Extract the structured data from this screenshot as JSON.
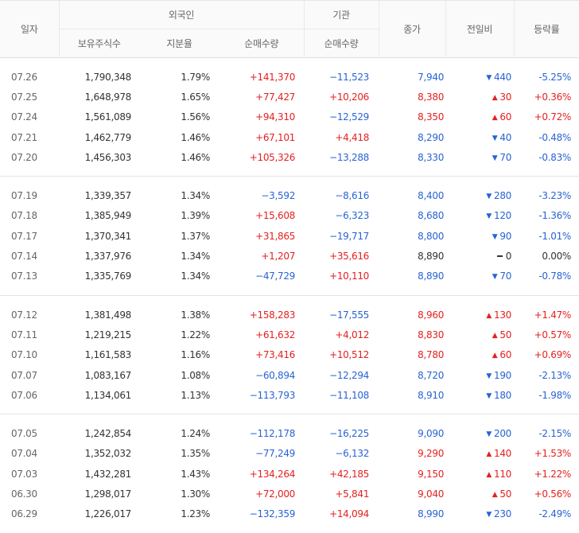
{
  "headers": {
    "date": "일자",
    "foreign": "외국인",
    "institution": "기관",
    "close": "종가",
    "diff": "전일비",
    "rate": "등락률",
    "holdings": "보유주식수",
    "ratio": "지분율",
    "foreign_net": "순매수량",
    "inst_net": "순매수량"
  },
  "groups": [
    [
      {
        "date": "07.26",
        "holdings": "1,790,348",
        "ratio": "1.79%",
        "fnet": "+141,370",
        "fdir": "up",
        "inet": "−11,523",
        "idir": "down",
        "close": "7,940",
        "cdir": "down",
        "diff": "440",
        "ddir": "down",
        "rate": "-5.25%",
        "rdir": "down"
      },
      {
        "date": "07.25",
        "holdings": "1,648,978",
        "ratio": "1.65%",
        "fnet": "+77,427",
        "fdir": "up",
        "inet": "+10,206",
        "idir": "up",
        "close": "8,380",
        "cdir": "up",
        "diff": "30",
        "ddir": "up",
        "rate": "+0.36%",
        "rdir": "up"
      },
      {
        "date": "07.24",
        "holdings": "1,561,089",
        "ratio": "1.56%",
        "fnet": "+94,310",
        "fdir": "up",
        "inet": "−12,529",
        "idir": "down",
        "close": "8,350",
        "cdir": "up",
        "diff": "60",
        "ddir": "up",
        "rate": "+0.72%",
        "rdir": "up"
      },
      {
        "date": "07.21",
        "holdings": "1,462,779",
        "ratio": "1.46%",
        "fnet": "+67,101",
        "fdir": "up",
        "inet": "+4,418",
        "idir": "up",
        "close": "8,290",
        "cdir": "down",
        "diff": "40",
        "ddir": "down",
        "rate": "-0.48%",
        "rdir": "down"
      },
      {
        "date": "07.20",
        "holdings": "1,456,303",
        "ratio": "1.46%",
        "fnet": "+105,326",
        "fdir": "up",
        "inet": "−13,288",
        "idir": "down",
        "close": "8,330",
        "cdir": "down",
        "diff": "70",
        "ddir": "down",
        "rate": "-0.83%",
        "rdir": "down"
      }
    ],
    [
      {
        "date": "07.19",
        "holdings": "1,339,357",
        "ratio": "1.34%",
        "fnet": "−3,592",
        "fdir": "down",
        "inet": "−8,616",
        "idir": "down",
        "close": "8,400",
        "cdir": "down",
        "diff": "280",
        "ddir": "down",
        "rate": "-3.23%",
        "rdir": "down"
      },
      {
        "date": "07.18",
        "holdings": "1,385,949",
        "ratio": "1.39%",
        "fnet": "+15,608",
        "fdir": "up",
        "inet": "−6,323",
        "idir": "down",
        "close": "8,680",
        "cdir": "down",
        "diff": "120",
        "ddir": "down",
        "rate": "-1.36%",
        "rdir": "down"
      },
      {
        "date": "07.17",
        "holdings": "1,370,341",
        "ratio": "1.37%",
        "fnet": "+31,865",
        "fdir": "up",
        "inet": "−19,717",
        "idir": "down",
        "close": "8,800",
        "cdir": "down",
        "diff": "90",
        "ddir": "down",
        "rate": "-1.01%",
        "rdir": "down"
      },
      {
        "date": "07.14",
        "holdings": "1,337,976",
        "ratio": "1.34%",
        "fnet": "+1,207",
        "fdir": "up",
        "inet": "+35,616",
        "idir": "up",
        "close": "8,890",
        "cdir": "flat",
        "diff": "0",
        "ddir": "flat",
        "rate": "0.00%",
        "rdir": "flat"
      },
      {
        "date": "07.13",
        "holdings": "1,335,769",
        "ratio": "1.34%",
        "fnet": "−47,729",
        "fdir": "down",
        "inet": "+10,110",
        "idir": "up",
        "close": "8,890",
        "cdir": "down",
        "diff": "70",
        "ddir": "down",
        "rate": "-0.78%",
        "rdir": "down"
      }
    ],
    [
      {
        "date": "07.12",
        "holdings": "1,381,498",
        "ratio": "1.38%",
        "fnet": "+158,283",
        "fdir": "up",
        "inet": "−17,555",
        "idir": "down",
        "close": "8,960",
        "cdir": "up",
        "diff": "130",
        "ddir": "up",
        "rate": "+1.47%",
        "rdir": "up"
      },
      {
        "date": "07.11",
        "holdings": "1,219,215",
        "ratio": "1.22%",
        "fnet": "+61,632",
        "fdir": "up",
        "inet": "+4,012",
        "idir": "up",
        "close": "8,830",
        "cdir": "up",
        "diff": "50",
        "ddir": "up",
        "rate": "+0.57%",
        "rdir": "up"
      },
      {
        "date": "07.10",
        "holdings": "1,161,583",
        "ratio": "1.16%",
        "fnet": "+73,416",
        "fdir": "up",
        "inet": "+10,512",
        "idir": "up",
        "close": "8,780",
        "cdir": "up",
        "diff": "60",
        "ddir": "up",
        "rate": "+0.69%",
        "rdir": "up"
      },
      {
        "date": "07.07",
        "holdings": "1,083,167",
        "ratio": "1.08%",
        "fnet": "−60,894",
        "fdir": "down",
        "inet": "−12,294",
        "idir": "down",
        "close": "8,720",
        "cdir": "down",
        "diff": "190",
        "ddir": "down",
        "rate": "-2.13%",
        "rdir": "down"
      },
      {
        "date": "07.06",
        "holdings": "1,134,061",
        "ratio": "1.13%",
        "fnet": "−113,793",
        "fdir": "down",
        "inet": "−11,108",
        "idir": "down",
        "close": "8,910",
        "cdir": "down",
        "diff": "180",
        "ddir": "down",
        "rate": "-1.98%",
        "rdir": "down"
      }
    ],
    [
      {
        "date": "07.05",
        "holdings": "1,242,854",
        "ratio": "1.24%",
        "fnet": "−112,178",
        "fdir": "down",
        "inet": "−16,225",
        "idir": "down",
        "close": "9,090",
        "cdir": "down",
        "diff": "200",
        "ddir": "down",
        "rate": "-2.15%",
        "rdir": "down"
      },
      {
        "date": "07.04",
        "holdings": "1,352,032",
        "ratio": "1.35%",
        "fnet": "−77,249",
        "fdir": "down",
        "inet": "−6,132",
        "idir": "down",
        "close": "9,290",
        "cdir": "up",
        "diff": "140",
        "ddir": "up",
        "rate": "+1.53%",
        "rdir": "up"
      },
      {
        "date": "07.03",
        "holdings": "1,432,281",
        "ratio": "1.43%",
        "fnet": "+134,264",
        "fdir": "up",
        "inet": "+42,185",
        "idir": "up",
        "close": "9,150",
        "cdir": "up",
        "diff": "110",
        "ddir": "up",
        "rate": "+1.22%",
        "rdir": "up"
      },
      {
        "date": "06.30",
        "holdings": "1,298,017",
        "ratio": "1.30%",
        "fnet": "+72,000",
        "fdir": "up",
        "inet": "+5,841",
        "idir": "up",
        "close": "9,040",
        "cdir": "up",
        "diff": "50",
        "ddir": "up",
        "rate": "+0.56%",
        "rdir": "up"
      },
      {
        "date": "06.29",
        "holdings": "1,226,017",
        "ratio": "1.23%",
        "fnet": "−132,359",
        "fdir": "down",
        "inet": "+14,094",
        "idir": "up",
        "close": "8,990",
        "cdir": "down",
        "diff": "230",
        "ddir": "down",
        "rate": "-2.49%",
        "rdir": "down"
      }
    ]
  ],
  "colors": {
    "up": "#e52020",
    "down": "#2863d3",
    "flat": "#333333"
  }
}
